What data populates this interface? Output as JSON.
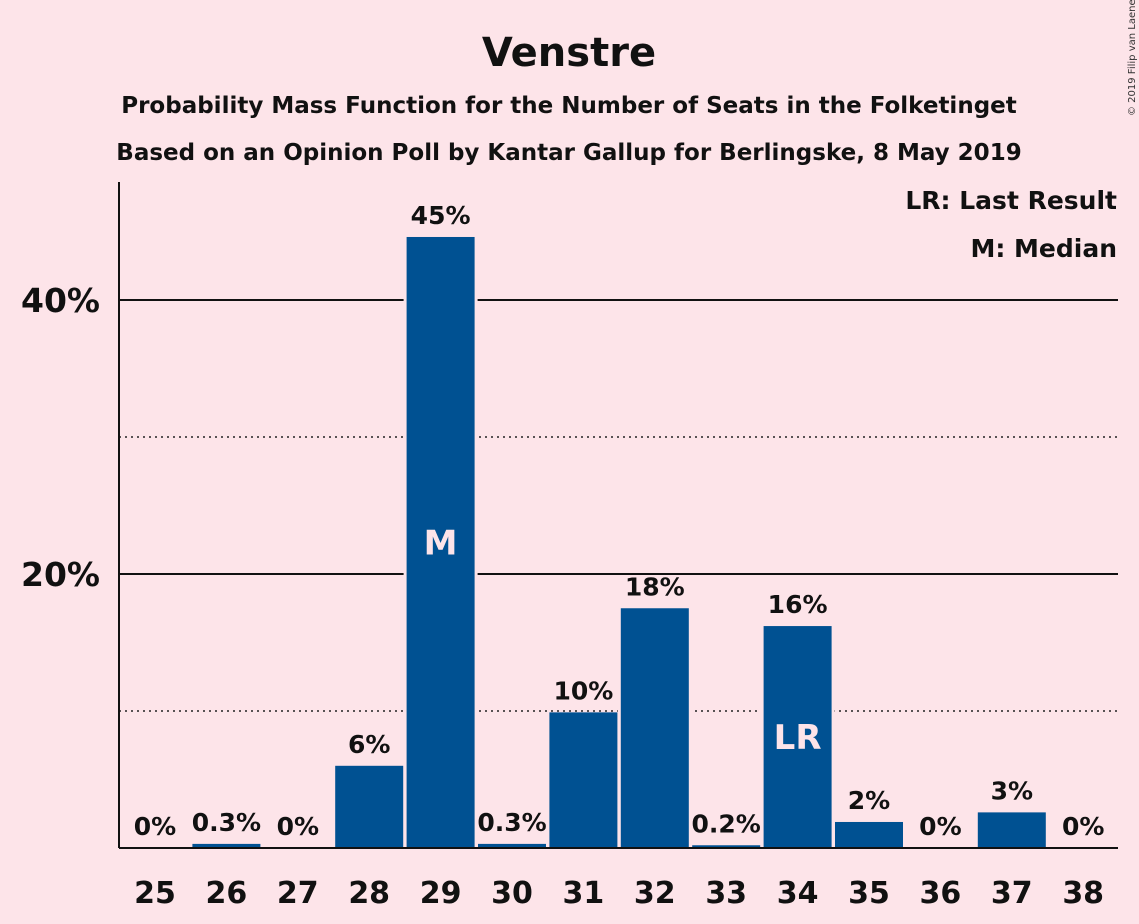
{
  "title": "Venstre",
  "subtitle1": "Probability Mass Function for the Number of Seats in the Folketinget",
  "subtitle2": "Based on an Opinion Poll by Kantar Gallup for Berlingske, 8 May 2019",
  "copyright": "© 2019 Filip van Laenen",
  "legend": {
    "lr": "LR: Last Result",
    "m": "M: Median"
  },
  "colors": {
    "background": "#fde4e9",
    "bar": "#005192",
    "text": "#111111"
  },
  "chart_data": {
    "type": "bar",
    "categories": [
      "25",
      "26",
      "27",
      "28",
      "29",
      "30",
      "31",
      "32",
      "33",
      "34",
      "35",
      "36",
      "37",
      "38"
    ],
    "values": [
      0,
      0.3,
      0,
      6,
      45,
      0.3,
      10,
      18,
      0.2,
      16,
      2,
      0,
      3,
      0
    ],
    "exact_values": [
      0,
      0.3,
      0,
      6.0,
      44.6,
      0.3,
      9.9,
      17.5,
      0.2,
      16.2,
      1.9,
      0,
      2.6,
      0
    ],
    "data_labels": [
      "0%",
      "0.3%",
      "0%",
      "6%",
      "45%",
      "0.3%",
      "10%",
      "18%",
      "0.2%",
      "16%",
      "2%",
      "0%",
      "3%",
      "0%"
    ],
    "in_bar_labels": {
      "29": "M",
      "34": "LR"
    },
    "ylim": [
      0,
      48
    ],
    "yticks": [
      {
        "value": 20,
        "label": "20%"
      },
      {
        "value": 40,
        "label": "40%"
      }
    ],
    "minor_grid": [
      10,
      30
    ],
    "major_grid": [
      20,
      40
    ],
    "legend_position": "top-right",
    "xlabel": "",
    "ylabel": ""
  }
}
